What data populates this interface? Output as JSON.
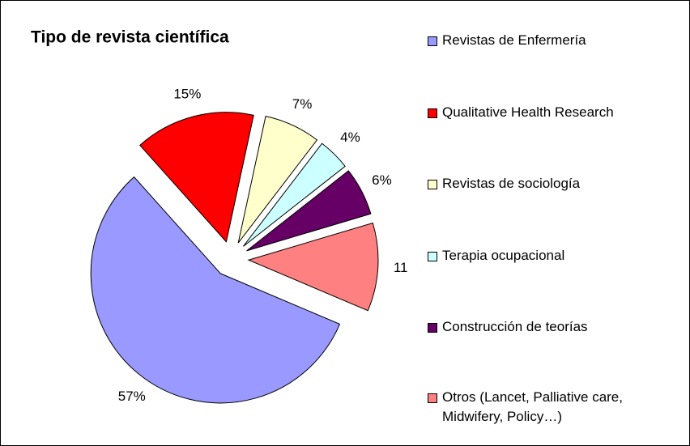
{
  "chart_data": {
    "type": "pie",
    "title": "Tipo de revista científica",
    "categories": [
      "Revistas de Enfermería",
      "Qualitative Health Research",
      "Revistas de sociología",
      "Terapia ocupacional",
      "Construcción de teorías",
      "Otros (Lancet, Palliative care, Midwifery, Policy…)"
    ],
    "values": [
      57,
      15,
      7,
      4,
      6,
      11
    ],
    "value_labels": [
      "57%",
      "15%",
      "7%",
      "4%",
      "6%",
      "11"
    ],
    "colors": [
      "#9999ff",
      "#ff0000",
      "#ffffcc",
      "#ccffff",
      "#660066",
      "#ff8080"
    ],
    "legend": "right"
  }
}
